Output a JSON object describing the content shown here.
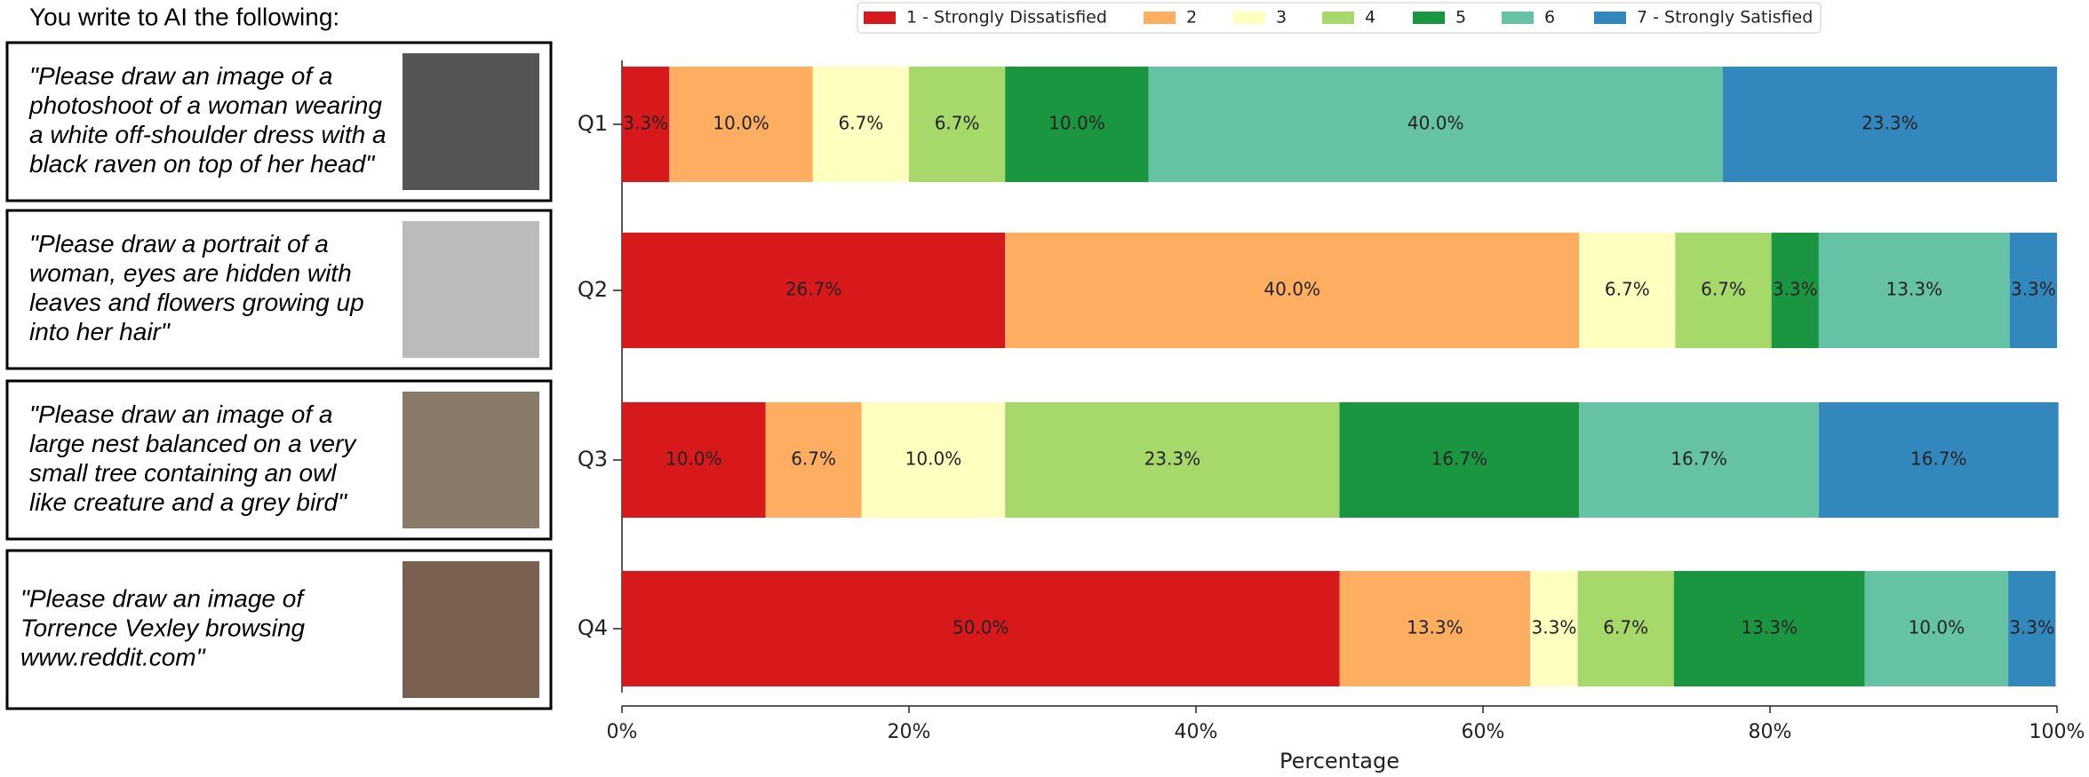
{
  "header": "You write to AI the following:",
  "prompts": [
    [
      "\"Please draw an image of a",
      "photoshoot of a woman wearing",
      "a white off-shoulder dress with a",
      "black raven on top of her head\""
    ],
    [
      "\"Please draw a portrait of a",
      "woman, eyes are hidden with",
      "leaves and flowers growing up",
      "into her hair\""
    ],
    [
      "\"Please draw an image of a",
      "large nest balanced on a very",
      "small tree containing an owl",
      "like creature and a grey bird\""
    ],
    [
      "\"Please draw an image of",
      "Torrence Vexley browsing",
      "www.reddit.com\""
    ]
  ],
  "chart_data": {
    "type": "stacked_barh",
    "xlabel": "Percentage",
    "categories": [
      "Q1",
      "Q2",
      "Q3",
      "Q4"
    ],
    "series": [
      {
        "name": "1 - Strongly Dissatisfied",
        "color": "#d7191c",
        "values": [
          3.3,
          26.7,
          10.0,
          50.0
        ],
        "value_labels": [
          "3.3%",
          "26.7%",
          "10.0%",
          "50.0%"
        ]
      },
      {
        "name": "2",
        "color": "#fdae61",
        "values": [
          10.0,
          40.0,
          6.7,
          13.3
        ],
        "value_labels": [
          "10.0%",
          "40.0%",
          "6.7%",
          "13.3%"
        ]
      },
      {
        "name": "3",
        "color": "#ffffbf",
        "values": [
          6.7,
          6.7,
          10.0,
          3.3
        ],
        "value_labels": [
          "6.7%",
          "6.7%",
          "10.0%",
          "3.3%"
        ]
      },
      {
        "name": "4",
        "color": "#a6d96a",
        "values": [
          6.7,
          6.7,
          23.3,
          6.7
        ],
        "value_labels": [
          "6.7%",
          "6.7%",
          "23.3%",
          "6.7%"
        ]
      },
      {
        "name": "5",
        "color": "#1a9641",
        "values": [
          10.0,
          3.3,
          16.7,
          13.3
        ],
        "value_labels": [
          "10.0%",
          "3.3%",
          "16.7%",
          "13.3%"
        ]
      },
      {
        "name": "6",
        "color": "#66c2a5",
        "values": [
          40.0,
          13.3,
          16.7,
          10.0
        ],
        "value_labels": [
          "40.0%",
          "13.3%",
          "16.7%",
          "10.0%"
        ]
      },
      {
        "name": "7 - Strongly Satisfied",
        "color": "#3288bd",
        "values": [
          23.3,
          3.3,
          16.7,
          3.3
        ],
        "value_labels": [
          "23.3%",
          "3.3%",
          "16.7%",
          "3.3%"
        ]
      }
    ],
    "xlim": [
      0,
      100
    ],
    "xticks": [
      {
        "value": 0,
        "label": "0%"
      },
      {
        "value": 20,
        "label": "20%"
      },
      {
        "value": 40,
        "label": "40%"
      },
      {
        "value": 60,
        "label": "60%"
      },
      {
        "value": 80,
        "label": "80%"
      },
      {
        "value": 100,
        "label": "100%"
      }
    ],
    "legend": "upper center"
  }
}
